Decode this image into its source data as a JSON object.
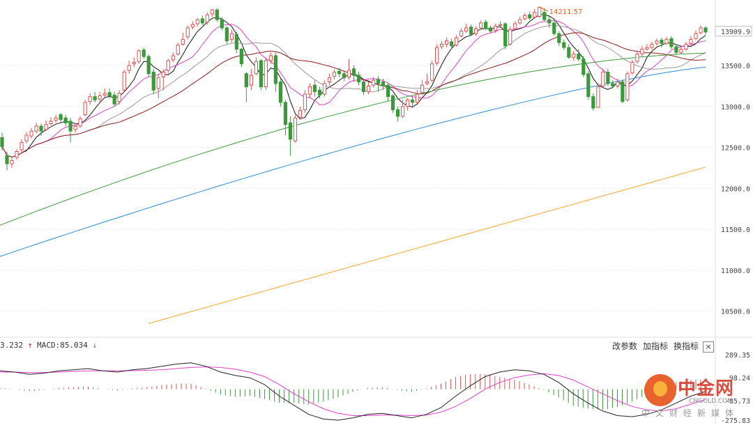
{
  "colors": {
    "up": "#e05050",
    "down": "#3a9a3a",
    "ma5": "#111111",
    "ma10": "#e040c8",
    "ma20": "#999999",
    "ma30": "#8b1a1a",
    "ma60": "#3a9a3a",
    "ma120": "#2a8ad8",
    "ma250": "#f5a623",
    "macd_dif": "#222222",
    "macd_dea": "#e040c8",
    "max_label": "#e06020"
  },
  "macd": {
    "left_value": "3.232",
    "macd_text": "MACD:85.034",
    "buttons": [
      "改参数",
      "加指标",
      "换指标"
    ],
    "close": "×",
    "y_ticks": [
      "289.35",
      "98.24",
      "-85.73",
      "-275.83"
    ]
  },
  "watermark": {
    "name": "中金网",
    "site": "CNGOLD.COM",
    "sub": "中文财经新媒体"
  },
  "chart_data": {
    "type": "candlestick",
    "title": "",
    "max_label": "14211.57",
    "last_label": "13909.9",
    "y_ticks": [
      10500.0,
      11000.0,
      11500.0,
      12000.0,
      12500.0,
      13000.0,
      13500.0
    ],
    "ylim": [
      10200,
      14300
    ],
    "grid": true,
    "candles": [
      [
        12620,
        12510,
        12680,
        12460
      ],
      [
        12400,
        12300,
        12450,
        12220
      ],
      [
        12300,
        12340,
        12380,
        12250
      ],
      [
        12380,
        12450,
        12480,
        12350
      ],
      [
        12470,
        12560,
        12600,
        12440
      ],
      [
        12580,
        12650,
        12690,
        12550
      ],
      [
        12640,
        12700,
        12740,
        12610
      ],
      [
        12700,
        12760,
        12800,
        12670
      ],
      [
        12760,
        12700,
        12790,
        12640
      ],
      [
        12720,
        12780,
        12830,
        12700
      ],
      [
        12790,
        12820,
        12870,
        12770
      ],
      [
        12830,
        12860,
        12900,
        12800
      ],
      [
        12900,
        12840,
        12920,
        12800
      ],
      [
        12860,
        12800,
        12900,
        12760
      ],
      [
        12820,
        12700,
        12860,
        12560
      ],
      [
        12720,
        12760,
        12800,
        12680
      ],
      [
        12760,
        12850,
        12880,
        12740
      ],
      [
        12900,
        13050,
        13080,
        12880
      ],
      [
        13060,
        13120,
        13160,
        13020
      ],
      [
        13120,
        13080,
        13180,
        13050
      ],
      [
        13090,
        13130,
        13180,
        13040
      ],
      [
        13140,
        13160,
        13220,
        13100
      ],
      [
        13170,
        13130,
        13220,
        13100
      ],
      [
        13140,
        13030,
        13180,
        13000
      ],
      [
        13060,
        13160,
        13200,
        13020
      ],
      [
        13200,
        13420,
        13450,
        13180
      ],
      [
        13440,
        13500,
        13560,
        13400
      ],
      [
        13520,
        13540,
        13600,
        13480
      ],
      [
        13550,
        13680,
        13700,
        13520
      ],
      [
        13690,
        13610,
        13720,
        13580
      ],
      [
        13610,
        13400,
        13640,
        13360
      ],
      [
        13420,
        13200,
        13460,
        13150
      ],
      [
        13220,
        13350,
        13400,
        13100
      ],
      [
        13360,
        13420,
        13450,
        13200
      ],
      [
        13440,
        13560,
        13580,
        13400
      ],
      [
        13570,
        13620,
        13660,
        13540
      ],
      [
        13640,
        13750,
        13780,
        13620
      ],
      [
        13760,
        13820,
        13900,
        13740
      ],
      [
        13850,
        13960,
        13990,
        13820
      ],
      [
        13970,
        14000,
        14040,
        13940
      ],
      [
        14010,
        14060,
        14080,
        13980
      ],
      [
        14070,
        14020,
        14110,
        13990
      ],
      [
        14030,
        14120,
        14150,
        14000
      ],
      [
        14130,
        14180,
        14190,
        14090
      ],
      [
        14180,
        14060,
        14200,
        14030
      ],
      [
        14060,
        13960,
        14090,
        13930
      ],
      [
        13960,
        13800,
        13980,
        13760
      ],
      [
        13820,
        13890,
        13940,
        13780
      ],
      [
        13880,
        13700,
        13910,
        13650
      ],
      [
        13700,
        13520,
        13720,
        13480
      ],
      [
        13400,
        13240,
        13420,
        13050
      ],
      [
        13260,
        13380,
        13460,
        13200
      ],
      [
        13400,
        13550,
        13600,
        13380
      ],
      [
        13560,
        13240,
        13580,
        13200
      ],
      [
        13240,
        13560,
        13600,
        13200
      ],
      [
        13560,
        13620,
        13660,
        13520
      ],
      [
        13620,
        13280,
        13660,
        13180
      ],
      [
        13300,
        13050,
        13350,
        13000
      ],
      [
        13050,
        12780,
        13080,
        12650
      ],
      [
        12800,
        12600,
        12880,
        12400
      ],
      [
        12580,
        12860,
        12900,
        12560
      ],
      [
        12870,
        12950,
        13000,
        12840
      ],
      [
        12960,
        13150,
        13200,
        12920
      ],
      [
        13150,
        13240,
        13280,
        13100
      ],
      [
        13260,
        13180,
        13320,
        13120
      ],
      [
        13200,
        13140,
        13240,
        13100
      ],
      [
        13150,
        13280,
        13320,
        13120
      ],
      [
        13300,
        13350,
        13400,
        13260
      ],
      [
        13370,
        13420,
        13450,
        13330
      ],
      [
        13430,
        13400,
        13470,
        13360
      ],
      [
        13400,
        13350,
        13440,
        13310
      ],
      [
        13360,
        13440,
        13580,
        13330
      ],
      [
        13460,
        13380,
        13500,
        13300
      ],
      [
        13380,
        13300,
        13420,
        13260
      ],
      [
        13300,
        13180,
        13330,
        13140
      ],
      [
        13180,
        13250,
        13300,
        13150
      ],
      [
        13260,
        13320,
        13360,
        13230
      ],
      [
        13330,
        13280,
        13370,
        13180
      ],
      [
        13300,
        13250,
        13340,
        13200
      ],
      [
        13260,
        13120,
        13290,
        13060
      ],
      [
        13130,
        12960,
        13150,
        12920
      ],
      [
        12960,
        12880,
        13000,
        12820
      ],
      [
        12880,
        13000,
        13080,
        12860
      ],
      [
        13000,
        13080,
        13100,
        12950
      ],
      [
        13080,
        13050,
        13130,
        12980
      ],
      [
        13050,
        13150,
        13200,
        13020
      ],
      [
        13170,
        13260,
        13320,
        13140
      ],
      [
        13280,
        13300,
        13400,
        13260
      ],
      [
        13320,
        13520,
        13560,
        13300
      ],
      [
        13530,
        13720,
        13760,
        13500
      ],
      [
        13730,
        13760,
        13800,
        13700
      ],
      [
        13760,
        13800,
        13840,
        13720
      ],
      [
        13790,
        13740,
        13830,
        13700
      ],
      [
        13750,
        13840,
        13870,
        13730
      ],
      [
        13860,
        13920,
        13960,
        13840
      ],
      [
        13920,
        13960,
        14010,
        13900
      ],
      [
        13970,
        13880,
        14000,
        13860
      ],
      [
        13890,
        13950,
        13980,
        13860
      ],
      [
        13960,
        14020,
        14050,
        13940
      ],
      [
        14030,
        13950,
        14060,
        13930
      ],
      [
        13960,
        13920,
        13990,
        13890
      ],
      [
        13930,
        13980,
        14010,
        13900
      ],
      [
        13990,
        14000,
        14040,
        13960
      ],
      [
        14010,
        13740,
        14030,
        13700
      ],
      [
        13760,
        13940,
        13980,
        13740
      ],
      [
        13950,
        14010,
        14040,
        13930
      ],
      [
        14020,
        14060,
        14100,
        14000
      ],
      [
        14070,
        14110,
        14140,
        14050
      ],
      [
        14120,
        14080,
        14160,
        14060
      ],
      [
        14090,
        14150,
        14190,
        14070
      ],
      [
        14100,
        14211,
        14215,
        14080
      ],
      [
        14150,
        14060,
        14200,
        14040
      ],
      [
        14060,
        14020,
        14100,
        13960
      ],
      [
        14020,
        13890,
        14050,
        13860
      ],
      [
        13890,
        13780,
        13920,
        13740
      ],
      [
        13780,
        13720,
        13820,
        13690
      ],
      [
        13720,
        13600,
        13760,
        13580
      ],
      [
        13600,
        13640,
        13680,
        13560
      ],
      [
        13640,
        13580,
        13700,
        13550
      ],
      [
        13580,
        13390,
        13620,
        13360
      ],
      [
        13400,
        13120,
        13430,
        13080
      ],
      [
        13120,
        12980,
        13160,
        12950
      ],
      [
        12990,
        13240,
        13290,
        12980
      ],
      [
        13250,
        13420,
        13460,
        13230
      ],
      [
        13420,
        13280,
        13460,
        13250
      ],
      [
        13280,
        13250,
        13320,
        13220
      ],
      [
        13250,
        13300,
        13340,
        13220
      ],
      [
        13300,
        13060,
        13330,
        13040
      ],
      [
        13080,
        13400,
        13430,
        13060
      ],
      [
        13410,
        13540,
        13570,
        13390
      ],
      [
        13550,
        13640,
        13680,
        13520
      ],
      [
        13640,
        13700,
        13740,
        13610
      ],
      [
        13700,
        13720,
        13760,
        13680
      ],
      [
        13720,
        13760,
        13790,
        13690
      ],
      [
        13770,
        13800,
        13830,
        13740
      ],
      [
        13810,
        13770,
        13840,
        13720
      ],
      [
        13770,
        13820,
        13850,
        13750
      ],
      [
        13830,
        13730,
        13860,
        13700
      ],
      [
        13730,
        13660,
        13760,
        13630
      ],
      [
        13660,
        13700,
        13730,
        13640
      ],
      [
        13700,
        13760,
        13790,
        13680
      ],
      [
        13770,
        13820,
        13860,
        13750
      ],
      [
        13830,
        13890,
        13930,
        13810
      ],
      [
        13900,
        13960,
        13990,
        13880
      ],
      [
        13960,
        13910,
        13980,
        13880
      ]
    ],
    "ma_periods": [
      5,
      10,
      20,
      30,
      60,
      120,
      250
    ],
    "ma_start_values": {
      "60": 11550,
      "120": 11170,
      "250": 10350
    },
    "ma_end_values": {
      "60": 13650,
      "120": 13480,
      "250": 12260
    },
    "macd": {
      "dif": [
        160,
        150,
        130,
        140,
        160,
        170,
        180,
        160,
        150,
        170,
        180,
        200,
        220,
        230,
        200,
        150,
        120,
        100,
        40,
        -60,
        -140,
        -220,
        -260,
        -270,
        -250,
        -220,
        -210,
        -230,
        -250,
        -220,
        -160,
        -60,
        30,
        110,
        150,
        170,
        160,
        130,
        60,
        -40,
        -120,
        -190,
        -230,
        -240,
        -220,
        -180,
        -120,
        -60,
        -20
      ],
      "dea": [
        150,
        150,
        145,
        145,
        150,
        155,
        160,
        160,
        160,
        162,
        165,
        170,
        180,
        190,
        195,
        190,
        175,
        150,
        110,
        40,
        -40,
        -110,
        -170,
        -210,
        -230,
        -230,
        -225,
        -225,
        -230,
        -225,
        -200,
        -150,
        -80,
        0,
        60,
        100,
        125,
        135,
        120,
        80,
        20,
        -40,
        -100,
        -150,
        -180,
        -190,
        -170,
        -130,
        -90
      ],
      "hist": [
        20,
        0,
        -30,
        -10,
        20,
        30,
        40,
        0,
        -20,
        15,
        30,
        60,
        80,
        80,
        10,
        -80,
        -110,
        -100,
        -140,
        -200,
        -200,
        -220,
        -180,
        -120,
        -40,
        20,
        30,
        -10,
        -40,
        10,
        80,
        180,
        220,
        220,
        180,
        140,
        70,
        -10,
        -120,
        -240,
        -280,
        -300,
        -260,
        -180,
        -80,
        20,
        100,
        140,
        140
      ]
    },
    "macd_ylim": [
      -300,
      320
    ]
  }
}
